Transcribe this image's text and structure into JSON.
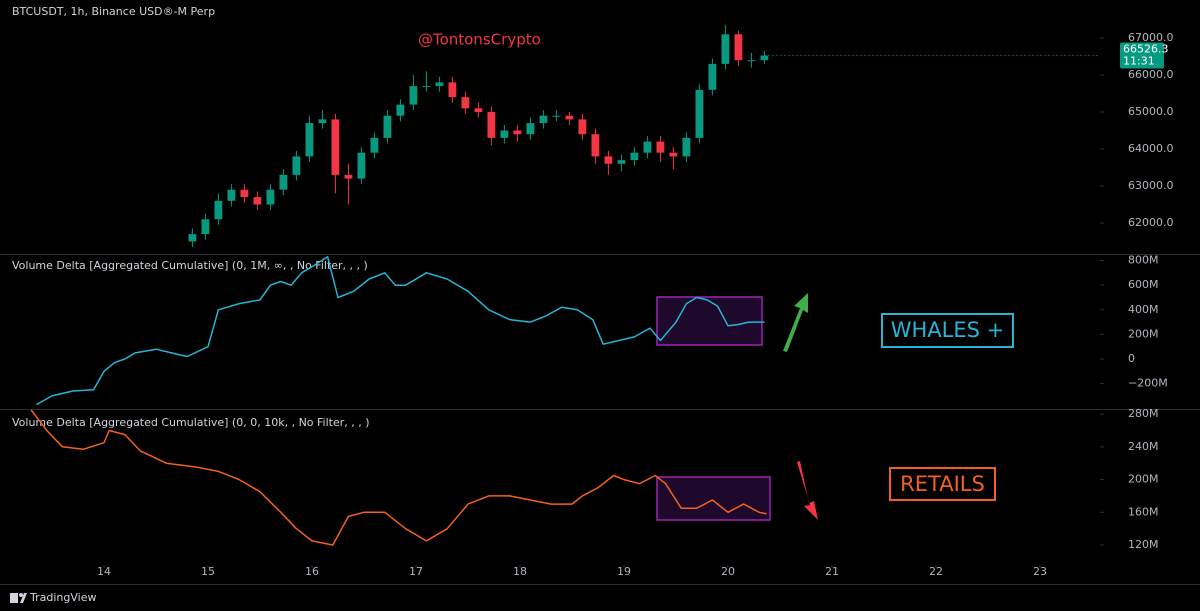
{
  "chart_data": [
    {
      "type": "candlestick",
      "title": "BTCUSDT, 1h, Binance USD®-M Perp",
      "annotation": "@TontonsCrypto",
      "countdown": "11:31",
      "up_color": "#089981",
      "down_color": "#f23645",
      "xlim": [
        13,
        23.577
      ],
      "ylim": [
        61189,
        68027
      ],
      "yticks": [
        {
          "value": 62000,
          "label": "62000.0"
        },
        {
          "value": 63000,
          "label": "63000.0"
        },
        {
          "value": 64000,
          "label": "64000.0"
        },
        {
          "value": 65000,
          "label": "65000.0"
        },
        {
          "value": 66000,
          "label": "66000.0"
        },
        {
          "value": 67000,
          "label": "67000.0"
        }
      ],
      "candles": {
        "x": [
          14.85,
          14.975,
          15.1,
          15.225,
          15.35,
          15.475,
          15.6,
          15.725,
          15.85,
          15.975,
          16.1,
          16.225,
          16.35,
          16.475,
          16.6,
          16.725,
          16.85,
          16.975,
          17.1,
          17.225,
          17.35,
          17.475,
          17.6,
          17.725,
          17.85,
          17.975,
          18.1,
          18.225,
          18.35,
          18.475,
          18.6,
          18.725,
          18.85,
          18.975,
          19.1,
          19.225,
          19.35,
          19.475,
          19.6,
          19.725,
          19.85,
          19.975,
          20.1,
          20.225,
          20.35
        ],
        "open": [
          61500,
          61700,
          62100,
          62600,
          62900,
          62700,
          62500,
          62900,
          63300,
          63800,
          64700,
          64800,
          63300,
          63200,
          63900,
          64300,
          64900,
          65200,
          65700,
          65700,
          65800,
          65400,
          65100,
          65000,
          64300,
          64500,
          64400,
          64700,
          64900,
          64900,
          64800,
          64400,
          63800,
          63600,
          63700,
          63900,
          64200,
          63900,
          63800,
          64300,
          65600,
          66300,
          67100,
          66400,
          66400
        ],
        "high": [
          61850,
          62250,
          62800,
          63050,
          63050,
          62850,
          63050,
          63450,
          63950,
          64900,
          65050,
          64950,
          63600,
          64050,
          64450,
          65050,
          65350,
          66000,
          66100,
          65950,
          65950,
          65550,
          65250,
          65150,
          64650,
          64650,
          64850,
          65050,
          65050,
          65000,
          64950,
          64550,
          63950,
          63850,
          64050,
          64350,
          64350,
          64050,
          64450,
          65750,
          66450,
          67350,
          67200,
          66600,
          66650
        ],
        "low": [
          61350,
          61550,
          61950,
          62450,
          62550,
          62350,
          62350,
          62750,
          63150,
          63650,
          64550,
          62800,
          62500,
          63050,
          63750,
          64150,
          64750,
          65050,
          65550,
          65550,
          65250,
          64950,
          64850,
          64100,
          64150,
          64200,
          64250,
          64550,
          64750,
          64650,
          64250,
          63600,
          63300,
          63400,
          63550,
          63750,
          63650,
          63450,
          63650,
          64150,
          65450,
          66150,
          66250,
          66200,
          66300
        ],
        "close": [
          61700,
          62100,
          62600,
          62900,
          62700,
          62500,
          62900,
          63300,
          63800,
          64700,
          64800,
          63300,
          63200,
          63900,
          64300,
          64900,
          65200,
          65700,
          65700,
          65800,
          65400,
          65100,
          65000,
          64300,
          64500,
          64400,
          64700,
          64900,
          64900,
          64800,
          64400,
          63800,
          63600,
          63700,
          63900,
          64200,
          63900,
          63800,
          64300,
          65600,
          66300,
          67100,
          66400,
          66400,
          66526.3
        ]
      }
    },
    {
      "type": "line",
      "title": "Volume Delta [Aggregated Cumulative] (0, 1M, ∞, , No Filter, , , )",
      "annotation": "WHALES +",
      "xlim": [
        13,
        23.577
      ],
      "ylim": [
        -398,
        845
      ],
      "yticks": [
        {
          "value": -200,
          "label": "−200M"
        },
        0,
        {
          "value": 200,
          "label": "200M"
        },
        {
          "value": 400,
          "label": "400M"
        },
        {
          "value": 600,
          "label": "600M"
        },
        {
          "value": 800,
          "label": "800M"
        }
      ],
      "series": [
        {
          "color": "#26b5d6",
          "x": [
            13.35,
            13.5,
            13.7,
            13.9,
            14.0,
            14.1,
            14.2,
            14.3,
            14.5,
            14.7,
            14.8,
            15.0,
            15.1,
            15.3,
            15.5,
            15.6,
            15.7,
            15.8,
            15.9,
            16.0,
            16.15,
            16.25,
            16.4,
            16.55,
            16.7,
            16.8,
            16.9,
            17.1,
            17.3,
            17.5,
            17.7,
            17.9,
            18.1,
            18.25,
            18.4,
            18.55,
            18.7,
            18.8,
            18.95,
            19.1,
            19.25,
            19.35,
            19.5,
            19.6,
            19.7,
            19.8,
            19.9,
            20.0,
            20.1,
            20.2,
            20.35
          ],
          "values": [
            -370,
            -300,
            -260,
            -250,
            -100,
            -30,
            0,
            50,
            80,
            40,
            20,
            100,
            400,
            450,
            480,
            600,
            630,
            600,
            700,
            750,
            830,
            500,
            550,
            650,
            700,
            600,
            600,
            700,
            650,
            550,
            400,
            320,
            300,
            350,
            420,
            400,
            320,
            120,
            150,
            180,
            250,
            150,
            300,
            450,
            500,
            480,
            430,
            270,
            280,
            300,
            300
          ]
        }
      ]
    },
    {
      "type": "line",
      "title": "Volume Delta [Aggregated Cumulative] (0, 0, 10k, , No Filter, , , )",
      "annotation": "RETAILS",
      "xlim": [
        13,
        23.577
      ],
      "ylim": [
        95.6,
        285
      ],
      "yticks": [
        {
          "value": 120,
          "label": "120M"
        },
        {
          "value": 160,
          "label": "160M"
        },
        {
          "value": 200,
          "label": "200M"
        },
        {
          "value": 240,
          "label": "240M"
        },
        {
          "value": 280,
          "label": "280M"
        }
      ],
      "xticks": [
        14,
        15,
        16,
        17,
        18,
        19,
        20,
        21,
        22,
        23
      ],
      "series": [
        {
          "color": "#f4601f",
          "x": [
            13.3,
            13.45,
            13.6,
            13.8,
            14.0,
            14.05,
            14.2,
            14.35,
            14.6,
            14.9,
            15.1,
            15.3,
            15.5,
            15.7,
            15.85,
            16.0,
            16.2,
            16.35,
            16.5,
            16.7,
            16.9,
            17.1,
            17.3,
            17.5,
            17.7,
            17.9,
            18.1,
            18.3,
            18.5,
            18.6,
            18.75,
            18.9,
            19.0,
            19.15,
            19.3,
            19.4,
            19.55,
            19.7,
            19.85,
            20.0,
            20.15,
            20.3,
            20.37
          ],
          "values": [
            285,
            260,
            240,
            237,
            245,
            260,
            255,
            235,
            220,
            215,
            210,
            200,
            185,
            160,
            140,
            125,
            120,
            155,
            160,
            160,
            140,
            125,
            140,
            170,
            180,
            180,
            175,
            170,
            170,
            180,
            190,
            205,
            200,
            195,
            205,
            195,
            165,
            165,
            175,
            160,
            170,
            160,
            158
          ]
        }
      ]
    }
  ],
  "footer": {
    "brand": "TradingView"
  }
}
